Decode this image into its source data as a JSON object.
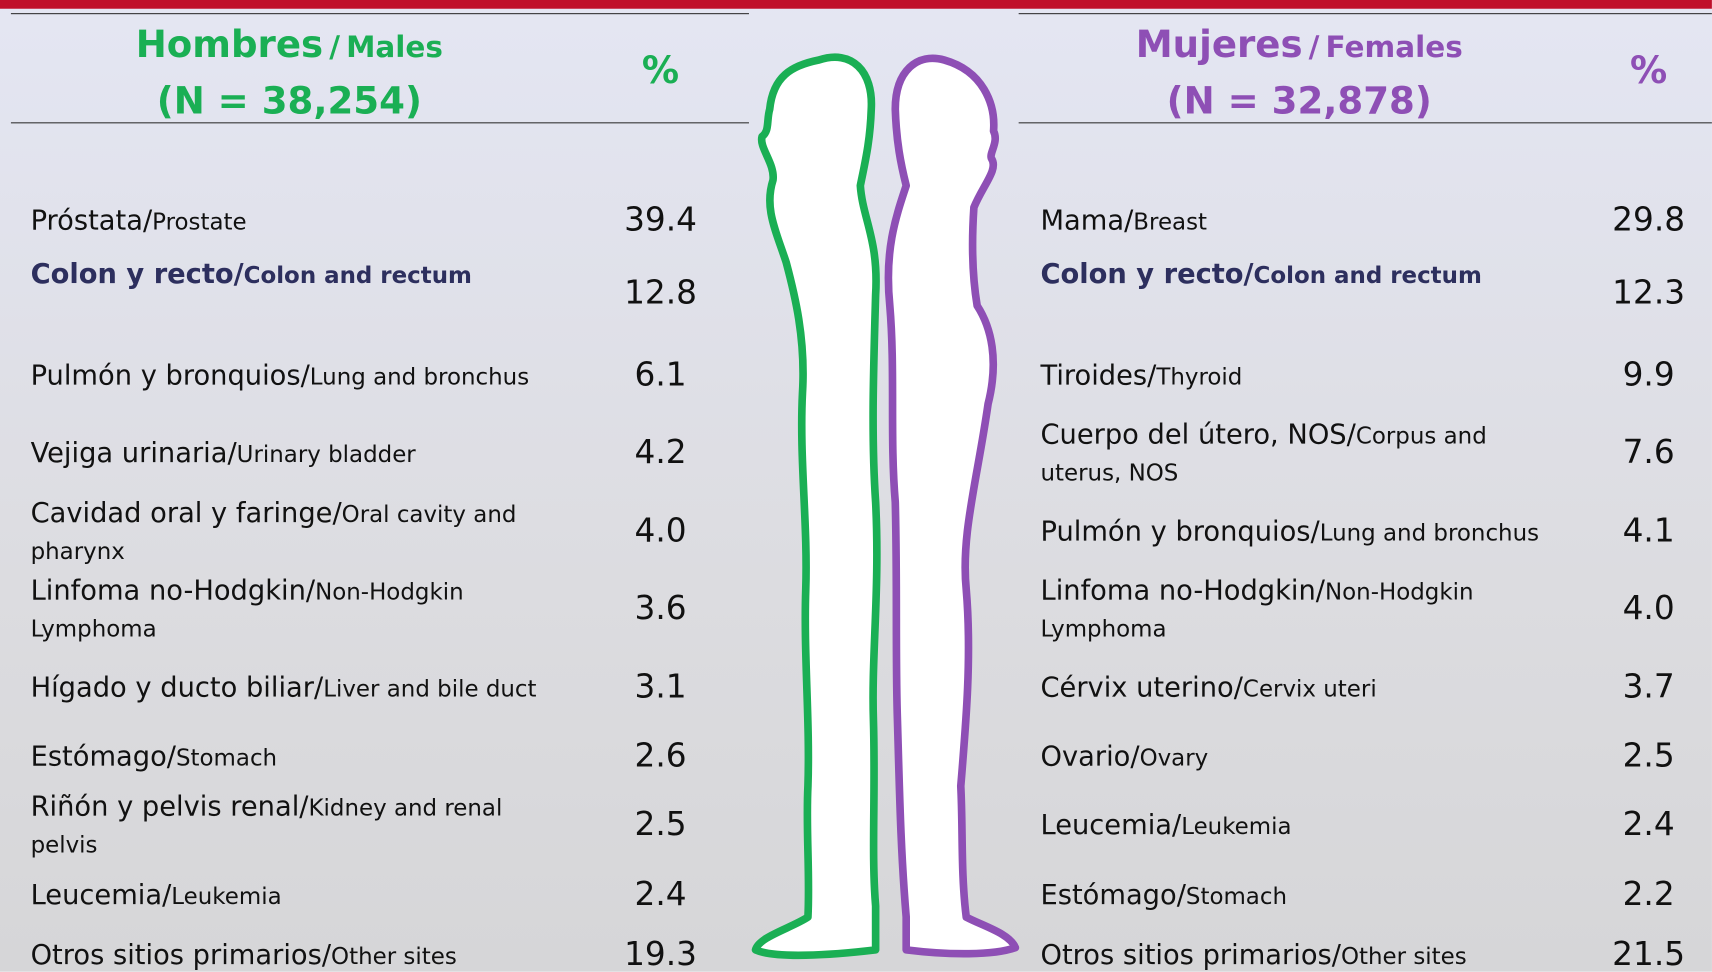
{
  "males": {
    "title_es": "Hombres",
    "sep": "/",
    "title_en": "Males",
    "n": "(N = 38,254)",
    "pct": "%",
    "rows": [
      {
        "es": "Próstata/",
        "en": "Prostate",
        "value": "39.4"
      },
      {
        "es": "Colon y recto/",
        "en": "Colon and rectum",
        "value": "12.8"
      },
      {
        "es": "Pulmón y bronquios/",
        "en": "Lung and bronchus",
        "value": "6.1"
      },
      {
        "es": "Vejiga urinaria/",
        "en": "Urinary bladder",
        "value": "4.2"
      },
      {
        "es": "Cavidad oral y faringe/",
        "en": "Oral cavity and pharynx",
        "value": "4.0"
      },
      {
        "es": "Linfoma no-Hodgkin/",
        "en": "Non-Hodgkin Lymphoma",
        "value": "3.6"
      },
      {
        "es": "Hígado y ducto biliar/",
        "en": "Liver and bile duct",
        "value": "3.1"
      },
      {
        "es": "Estómago/",
        "en": "Stomach",
        "value": "2.6"
      },
      {
        "es": "Riñón y pelvis renal/",
        "en": "Kidney and renal pelvis",
        "value": "2.5"
      },
      {
        "es": "Leucemia/",
        "en": "Leukemia",
        "value": "2.4"
      },
      {
        "es": "Otros sitios primarios/",
        "en": "Other sites",
        "value": "19.3"
      }
    ]
  },
  "females": {
    "title_es": "Mujeres",
    "sep": "/",
    "title_en": "Females",
    "n": "(N = 32,878)",
    "pct": "%",
    "rows": [
      {
        "es": "Mama/",
        "en": "Breast",
        "value": "29.8"
      },
      {
        "es": "Colon y recto/",
        "en": "Colon and rectum",
        "value": "12.3"
      },
      {
        "es": "Tiroides/",
        "en": "Thyroid",
        "value": "9.9"
      },
      {
        "es": "Cuerpo del útero, NOS/",
        "en": "Corpus and uterus, NOS",
        "value": "7.6"
      },
      {
        "es": "Pulmón y bronquios/",
        "en": "Lung and bronchus",
        "value": "4.1"
      },
      {
        "es": "Linfoma no-Hodgkin/",
        "en": "Non-Hodgkin Lymphoma",
        "value": "4.0"
      },
      {
        "es": "Cérvix uterino/",
        "en": "Cervix uteri",
        "value": "3.7"
      },
      {
        "es": "Ovario/",
        "en": "Ovary",
        "value": "2.5"
      },
      {
        "es": "Leucemia/",
        "en": "Leukemia",
        "value": "2.4"
      },
      {
        "es": "Estómago/",
        "en": "Stomach",
        "value": "2.2"
      },
      {
        "es": "Otros sitios primarios/",
        "en": "Other sites",
        "value": "21.5"
      }
    ]
  }
}
